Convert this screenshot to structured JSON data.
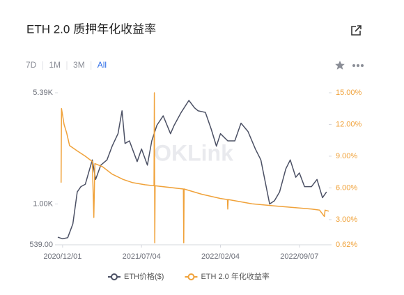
{
  "chart_data": {
    "type": "line",
    "title": "ETH 2.0 质押年化收益率",
    "ranges": [
      "7D",
      "1M",
      "3M",
      "All"
    ],
    "active_range": 3,
    "watermark": "OKLink",
    "xlim": [
      "2020/11/18",
      "2022/11/26"
    ],
    "xticks": [
      "2020/12/01",
      "2021/07/04",
      "2022/02/04",
      "2022/09/07"
    ],
    "y_scale": "log",
    "ylim": [
      539,
      5390
    ],
    "yticks": [
      {
        "value": 539,
        "label": "539.00"
      },
      {
        "value": 1000,
        "label": "1.00K"
      },
      {
        "value": 5390,
        "label": "5.39K"
      }
    ],
    "y2lim": [
      0.62,
      15
    ],
    "y2ticks": [
      {
        "value": 0.62,
        "label": "0.62%"
      },
      {
        "value": 3,
        "label": "3.00%"
      },
      {
        "value": 6,
        "label": "6.00%"
      },
      {
        "value": 9,
        "label": "9.00%"
      },
      {
        "value": 12,
        "label": "12.00%"
      },
      {
        "value": 15,
        "label": "15.00%"
      }
    ],
    "grid": false,
    "legend": "bottom",
    "series": [
      {
        "name": "ETH价格($)",
        "color": "#4b5064",
        "axis": "y",
        "x": [
          "2020/11/18",
          "2020/12/01",
          "2020/12/15",
          "2020/12/29",
          "2021/01/10",
          "2021/01/20",
          "2021/02/01",
          "2021/02/20",
          "2021/03/01",
          "2021/03/15",
          "2021/04/01",
          "2021/04/15",
          "2021/05/01",
          "2021/05/12",
          "2021/05/20",
          "2021/06/01",
          "2021/06/22",
          "2021/07/04",
          "2021/07/20",
          "2021/08/01",
          "2021/08/15",
          "2021/09/01",
          "2021/09/21",
          "2021/10/01",
          "2021/10/20",
          "2021/11/10",
          "2021/11/25",
          "2021/12/05",
          "2021/12/25",
          "2022/01/10",
          "2022/01/24",
          "2022/02/04",
          "2022/02/24",
          "2022/03/15",
          "2022/04/01",
          "2022/04/20",
          "2022/05/10",
          "2022/05/25",
          "2022/06/18",
          "2022/07/01",
          "2022/07/15",
          "2022/08/01",
          "2022/08/13",
          "2022/08/28",
          "2022/09/07",
          "2022/09/21",
          "2022/10/10",
          "2022/10/25",
          "2022/11/09",
          "2022/11/20"
        ],
        "values": [
          605,
          590,
          600,
          740,
          1200,
          1300,
          1350,
          1950,
          1450,
          1800,
          1950,
          2400,
          2900,
          4100,
          2500,
          2600,
          1900,
          2300,
          1800,
          2600,
          3300,
          3800,
          2900,
          3300,
          4000,
          4800,
          4300,
          4100,
          4000,
          3100,
          2400,
          2900,
          2600,
          2600,
          3400,
          3000,
          2300,
          1950,
          1000,
          1050,
          1200,
          1700,
          1950,
          1500,
          1600,
          1300,
          1300,
          1450,
          1100,
          1200
        ]
      },
      {
        "name": "ETH 2.0 年化收益率",
        "color": "#f0a23a",
        "axis": "y2",
        "x": [
          "2020/11/27",
          "2020/11/28",
          "2020/12/05",
          "2020/12/12",
          "2020/12/20",
          "2021/01/10",
          "2021/02/01",
          "2021/02/20",
          "2021/02/24",
          "2021/02/27",
          "2021/03/20",
          "2021/04/15",
          "2021/05/15",
          "2021/06/10",
          "2021/07/13",
          "2021/08/07",
          "2021/08/08",
          "2021/08/09",
          "2021/08/10",
          "2021/10/26",
          "2021/10/27",
          "2021/10/28",
          "2021/12/15",
          "2022/02/04",
          "2022/02/23",
          "2022/02/24",
          "2022/02/25",
          "2022/05/01",
          "2022/07/01",
          "2022/09/07",
          "2022/10/10",
          "2022/11/01",
          "2022/11/14",
          "2022/11/16",
          "2022/11/26"
        ],
        "values": [
          6.5,
          13.5,
          12.0,
          11.2,
          10.0,
          9.5,
          9.0,
          8.5,
          3.2,
          8.3,
          8.0,
          7.3,
          6.8,
          6.5,
          6.3,
          6.2,
          15.0,
          0.8,
          6.2,
          5.9,
          0.8,
          5.9,
          5.4,
          5.0,
          4.9,
          4.0,
          4.9,
          4.5,
          4.3,
          4.1,
          4.0,
          3.9,
          3.3,
          3.9,
          3.8
        ]
      }
    ]
  }
}
